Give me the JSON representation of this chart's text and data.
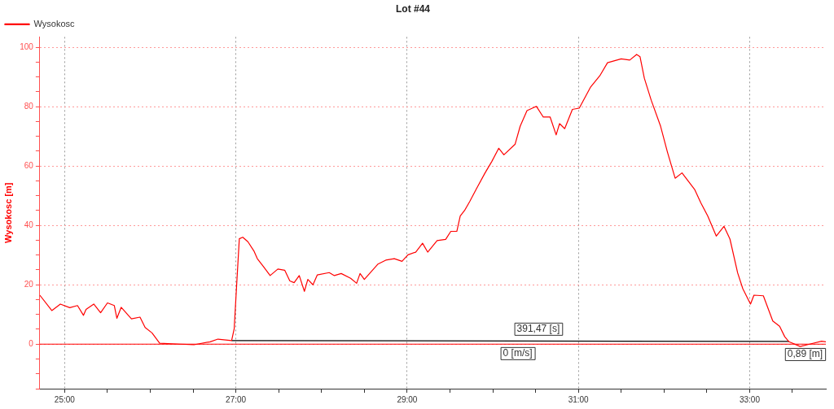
{
  "chart_data": {
    "type": "line",
    "title": "Lot #44",
    "ylabel": "Wysokosc [m]",
    "legend": "top left",
    "grid": true,
    "marker": "none",
    "line_style": "solid",
    "xlim": [
      24.71,
      33.89
    ],
    "xticks": [
      {
        "value": 25,
        "label": "25:00"
      },
      {
        "value": 25.5,
        "label": null
      },
      {
        "value": 26,
        "label": null
      },
      {
        "value": 26.5,
        "label": null
      },
      {
        "value": 27,
        "label": "27:00"
      },
      {
        "value": 27.5,
        "label": null
      },
      {
        "value": 28,
        "label": null
      },
      {
        "value": 28.5,
        "label": null
      },
      {
        "value": 29,
        "label": "29:00"
      },
      {
        "value": 29.5,
        "label": null
      },
      {
        "value": 30,
        "label": null
      },
      {
        "value": 30.5,
        "label": null
      },
      {
        "value": 31,
        "label": "31:00"
      },
      {
        "value": 31.5,
        "label": null
      },
      {
        "value": 32,
        "label": null
      },
      {
        "value": 32.5,
        "label": null
      },
      {
        "value": 33,
        "label": "33:00"
      },
      {
        "value": 33.5,
        "label": null
      }
    ],
    "ylim": [
      -15,
      103.5
    ],
    "yticks": [
      {
        "value": -15,
        "label": null
      },
      {
        "value": -10,
        "label": null
      },
      {
        "value": -5,
        "label": null
      },
      0,
      {
        "value": 5,
        "label": null
      },
      {
        "value": 10,
        "label": null
      },
      {
        "value": 15,
        "label": null
      },
      20,
      {
        "value": 25,
        "label": null
      },
      {
        "value": 30,
        "label": null
      },
      {
        "value": 35,
        "label": null
      },
      40,
      {
        "value": 45,
        "label": null
      },
      {
        "value": 50,
        "label": null
      },
      {
        "value": 55,
        "label": null
      },
      60,
      {
        "value": 65,
        "label": null
      },
      {
        "value": 70,
        "label": null
      },
      {
        "value": 75,
        "label": null
      },
      80,
      {
        "value": 85,
        "label": null
      },
      {
        "value": 90,
        "label": null
      },
      {
        "value": 95,
        "label": null
      },
      100
    ],
    "ref_lines": [
      {
        "axis": "y",
        "value": 0,
        "color": "#ff0000"
      }
    ],
    "annotations": [
      "391,47 [s]",
      "0 [m/s]",
      "0,89 [m]"
    ],
    "series": [
      {
        "name": "Wysokosc",
        "color": "#ff0000",
        "x": [
          24.71,
          24.85,
          24.95,
          25.06,
          25.15,
          25.22,
          25.25,
          25.34,
          25.42,
          25.5,
          25.58,
          25.61,
          25.66,
          25.78,
          25.88,
          25.94,
          26.02,
          26.11,
          26.35,
          26.51,
          26.7,
          26.79,
          26.95,
          26.98,
          27.01,
          27.04,
          27.08,
          27.14,
          27.21,
          27.25,
          27.32,
          27.4,
          27.49,
          27.57,
          27.63,
          27.68,
          27.74,
          27.8,
          27.84,
          27.9,
          27.95,
          28.09,
          28.15,
          28.23,
          28.34,
          28.41,
          28.45,
          28.5,
          28.66,
          28.75,
          28.85,
          28.94,
          29.01,
          29.1,
          29.18,
          29.24,
          29.35,
          29.45,
          29.51,
          29.58,
          29.62,
          29.67,
          29.73,
          29.81,
          29.91,
          29.99,
          30.07,
          30.13,
          30.26,
          30.32,
          30.4,
          30.51,
          30.59,
          30.67,
          30.74,
          30.78,
          30.84,
          30.93,
          31.01,
          31.14,
          31.25,
          31.34,
          31.5,
          31.6,
          31.68,
          31.72,
          31.77,
          31.85,
          31.96,
          32.04,
          32.13,
          32.21,
          32.36,
          32.43,
          32.51,
          32.61,
          32.7,
          32.77,
          32.86,
          32.92,
          33.01,
          33.05,
          33.16,
          33.27,
          33.35,
          33.41,
          33.46,
          33.59,
          33.7,
          33.84,
          33.89
        ],
        "values": [
          16.5,
          11.3,
          13.5,
          12.3,
          13,
          9.7,
          11.7,
          13.5,
          10.6,
          13.9,
          13,
          8.7,
          12.4,
          8.5,
          9.1,
          5.6,
          3.8,
          0.3,
          0,
          -0.2,
          0.8,
          1.7,
          1.2,
          5.2,
          20.5,
          35.5,
          36,
          34.5,
          31.4,
          28.8,
          26.2,
          23.1,
          25.3,
          24.9,
          21.3,
          20.7,
          23.1,
          17.8,
          21.8,
          20,
          23.3,
          24.1,
          23.1,
          23.8,
          22.2,
          20.5,
          23.8,
          21.8,
          27,
          28.3,
          28.8,
          27.9,
          30.1,
          31,
          34,
          31,
          34.9,
          35.3,
          38,
          38,
          43.2,
          45,
          48,
          52.4,
          57.7,
          61.6,
          66,
          63.8,
          67.3,
          73.4,
          78.7,
          80.1,
          76.5,
          76.5,
          70.5,
          74.3,
          72.6,
          79.1,
          79.5,
          86.5,
          90.4,
          94.8,
          96.1,
          95.7,
          97.6,
          96.8,
          89.6,
          82.2,
          73.4,
          64.7,
          55.9,
          57.7,
          52,
          47.6,
          43.2,
          36.4,
          39.7,
          35.4,
          24,
          18.7,
          13.5,
          16.5,
          16.3,
          7.8,
          6,
          2.5,
          0.8,
          -0.8,
          0,
          1,
          0.8
        ]
      },
      {
        "color": "#000000",
        "x": [
          26.95,
          33.46
        ],
        "values": [
          1.2,
          0.9
        ]
      }
    ]
  }
}
